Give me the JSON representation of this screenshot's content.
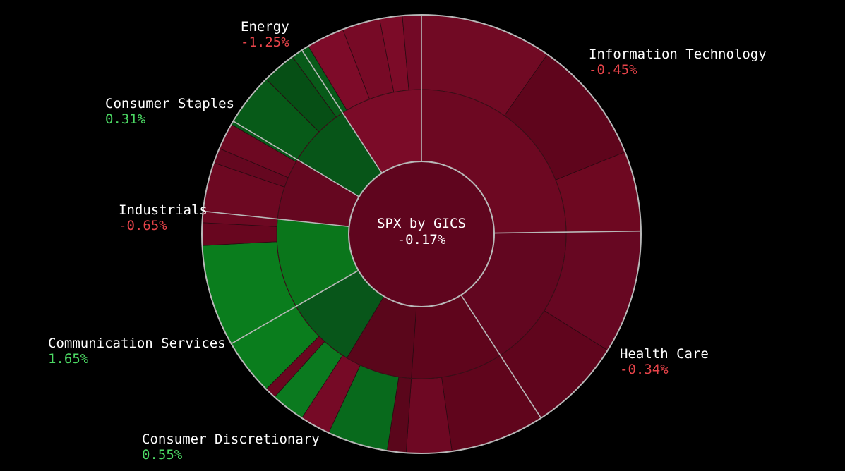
{
  "chart_data": {
    "type": "sunburst",
    "title": "SPX by GICS",
    "total_change": "-0.17%",
    "colors": {
      "positive_text": "#4cd964",
      "negative_text": "#e8444a",
      "outline": "#b8b8b8"
    },
    "sectors": [
      {
        "name": "Information Technology",
        "change": "-0.45%",
        "fill": "#6b0720",
        "start_deg": 0,
        "end_deg": 89.2,
        "subs": [
          {
            "start_deg": 0,
            "end_deg": 89.2,
            "fill": "#6d0822",
            "leaves": [
              {
                "start_deg": 0,
                "end_deg": 35,
                "fill": "#710a24"
              },
              {
                "start_deg": 35,
                "end_deg": 68,
                "fill": "#5f051c"
              },
              {
                "start_deg": 68,
                "end_deg": 89.2,
                "fill": "#6e0821"
              }
            ]
          }
        ]
      },
      {
        "name": "Health Care",
        "change": "-0.34%",
        "fill": "#5f051c",
        "start_deg": 89.2,
        "end_deg": 147,
        "subs": [
          {
            "start_deg": 89.2,
            "end_deg": 147,
            "fill": "#620620",
            "leaves": [
              {
                "start_deg": 89.2,
                "end_deg": 122,
                "fill": "#670722"
              },
              {
                "start_deg": 122,
                "end_deg": 147,
                "fill": "#60051d"
              }
            ]
          }
        ]
      },
      {
        "name": "Consumer Discretionary",
        "change": "0.55%",
        "fill": "#0a5d16",
        "start_deg": 147,
        "end_deg": 240,
        "subs": [
          {
            "start_deg": 147,
            "end_deg": 184,
            "fill": "#5f051c",
            "leaves": [
              {
                "start_deg": 147,
                "end_deg": 172,
                "fill": "#60051c"
              },
              {
                "start_deg": 172,
                "end_deg": 184,
                "fill": "#6e0823"
              }
            ]
          },
          {
            "start_deg": 184,
            "end_deg": 211,
            "fill": "#5a061b",
            "leaves": [
              {
                "start_deg": 184,
                "end_deg": 189,
                "fill": "#5a061b"
              }
            ]
          },
          {
            "start_deg": 211,
            "end_deg": 240,
            "fill": "#08561a",
            "leaves": [
              {
                "start_deg": 189,
                "end_deg": 205,
                "fill": "#086a1c"
              },
              {
                "start_deg": 205,
                "end_deg": 213,
                "fill": "#760a26"
              },
              {
                "start_deg": 213,
                "end_deg": 222,
                "fill": "#0b7a1f"
              },
              {
                "start_deg": 222,
                "end_deg": 225,
                "fill": "#6a0720"
              }
            ]
          }
        ]
      },
      {
        "name": "Communication Services",
        "change": "1.65%",
        "fill": "#087a1a",
        "start_deg": 240,
        "end_deg": 276,
        "subs": [
          {
            "start_deg": 240,
            "end_deg": 276,
            "fill": "#0a761b",
            "leaves": [
              {
                "start_deg": 225,
                "end_deg": 267,
                "fill": "#0a7d1d"
              },
              {
                "start_deg": 267,
                "end_deg": 273,
                "fill": "#68061f"
              }
            ]
          }
        ]
      },
      {
        "name": "Industrials",
        "change": "-0.65%",
        "fill": "#660720",
        "start_deg": 276,
        "end_deg": 301,
        "subs": [
          {
            "start_deg": 276,
            "end_deg": 301,
            "fill": "#650720",
            "leaves": [
              {
                "start_deg": 273,
                "end_deg": 289,
                "fill": "#6d0822"
              },
              {
                "start_deg": 289,
                "end_deg": 293,
                "fill": "#650720"
              },
              {
                "start_deg": 293,
                "end_deg": 300,
                "fill": "#6d0822"
              }
            ]
          }
        ]
      },
      {
        "name": "Consumer Staples",
        "change": "0.31%",
        "fill": "#065216",
        "start_deg": 301,
        "end_deg": 327,
        "subs": [
          {
            "start_deg": 301,
            "end_deg": 327,
            "fill": "#075518",
            "leaves": [
              {
                "start_deg": 300,
                "end_deg": 315,
                "fill": "#075a18"
              },
              {
                "start_deg": 315,
                "end_deg": 324,
                "fill": "#064f15"
              },
              {
                "start_deg": 324,
                "end_deg": 329,
                "fill": "#085a19"
              }
            ]
          }
        ]
      },
      {
        "name": "Energy",
        "change": "-1.25%",
        "fill": "#7a0a26",
        "start_deg": 327,
        "end_deg": 360,
        "subs": [
          {
            "start_deg": 327,
            "end_deg": 360,
            "fill": "#7b0b28",
            "leaves": [
              {
                "start_deg": 329,
                "end_deg": 339,
                "fill": "#7e0b29"
              },
              {
                "start_deg": 339,
                "end_deg": 349,
                "fill": "#770a26"
              },
              {
                "start_deg": 349,
                "end_deg": 355,
                "fill": "#7c0b28"
              },
              {
                "start_deg": 355,
                "end_deg": 360,
                "fill": "#730926"
              }
            ]
          }
        ]
      }
    ]
  }
}
